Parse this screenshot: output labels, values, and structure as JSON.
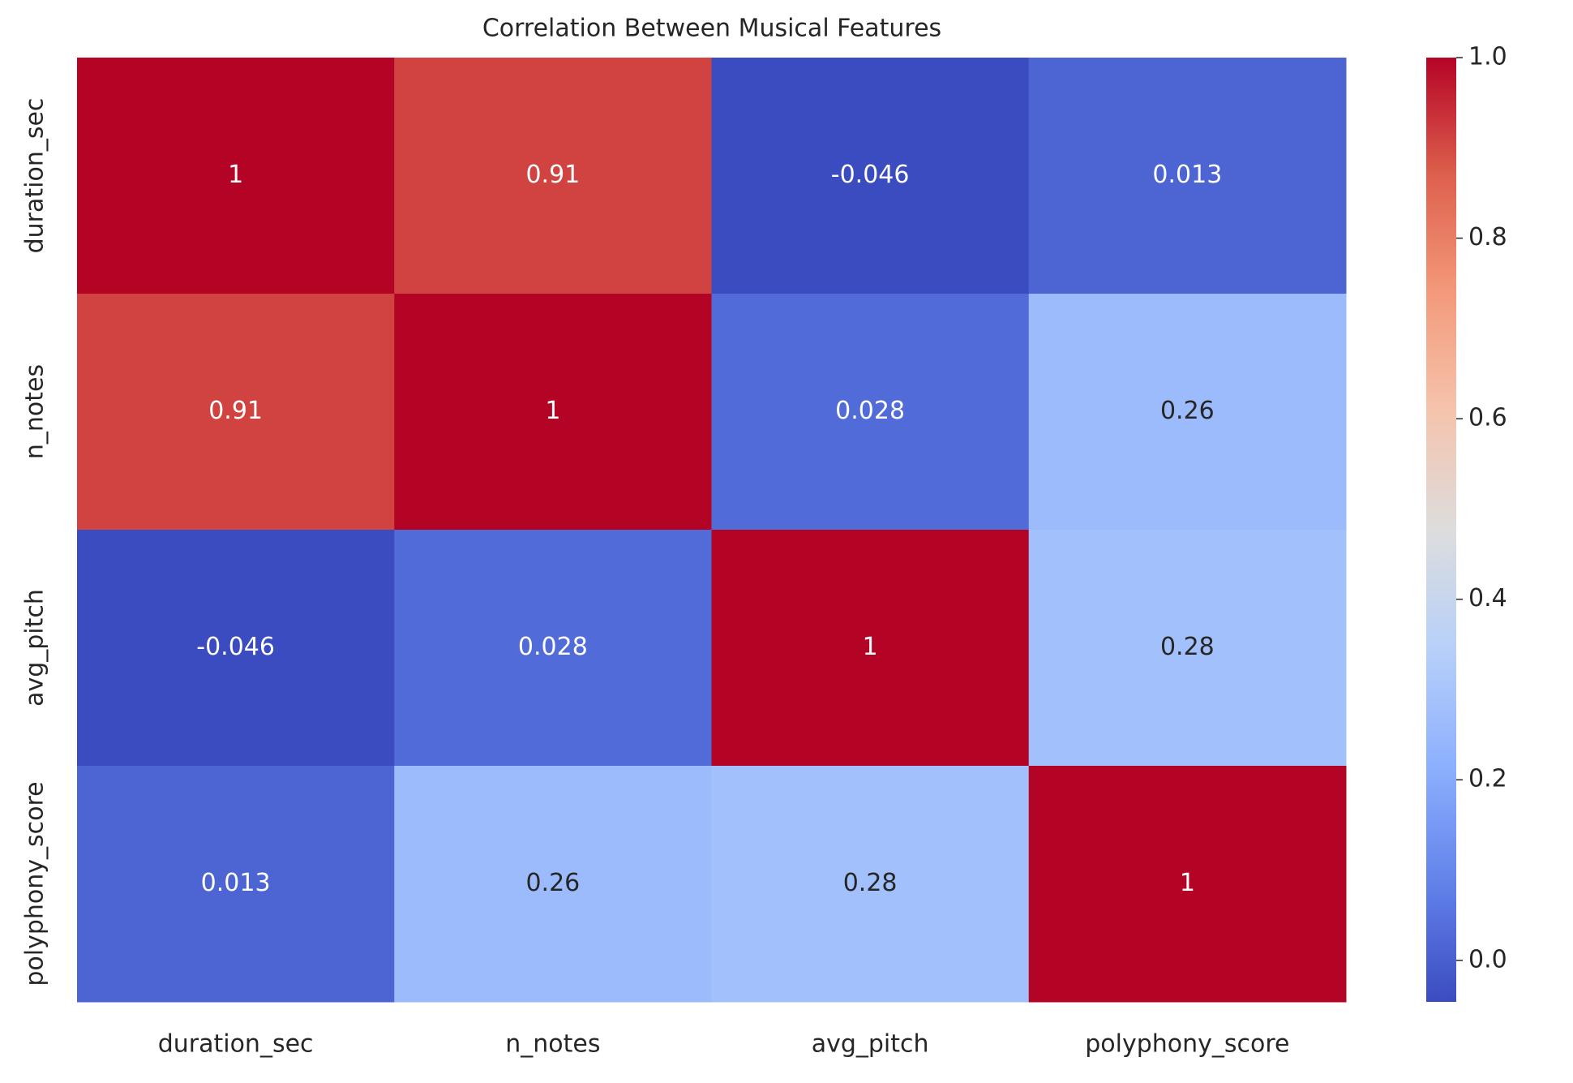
{
  "chart_data": {
    "type": "heatmap",
    "title": "Correlation Between Musical Features",
    "categories": [
      "duration_sec",
      "n_notes",
      "avg_pitch",
      "polyphony_score"
    ],
    "z": [
      [
        1,
        0.91,
        -0.046,
        0.013
      ],
      [
        0.91,
        1,
        0.028,
        0.26
      ],
      [
        -0.046,
        0.028,
        1,
        0.28
      ],
      [
        0.013,
        0.26,
        0.28,
        1
      ]
    ],
    "colormap": "coolwarm",
    "zlim": [
      -0.046,
      1
    ],
    "zticks": [
      {
        "value": 0,
        "label": "0.0"
      },
      0.2,
      0.4,
      0.6,
      0.8,
      {
        "value": 1,
        "label": "1.0"
      }
    ]
  }
}
